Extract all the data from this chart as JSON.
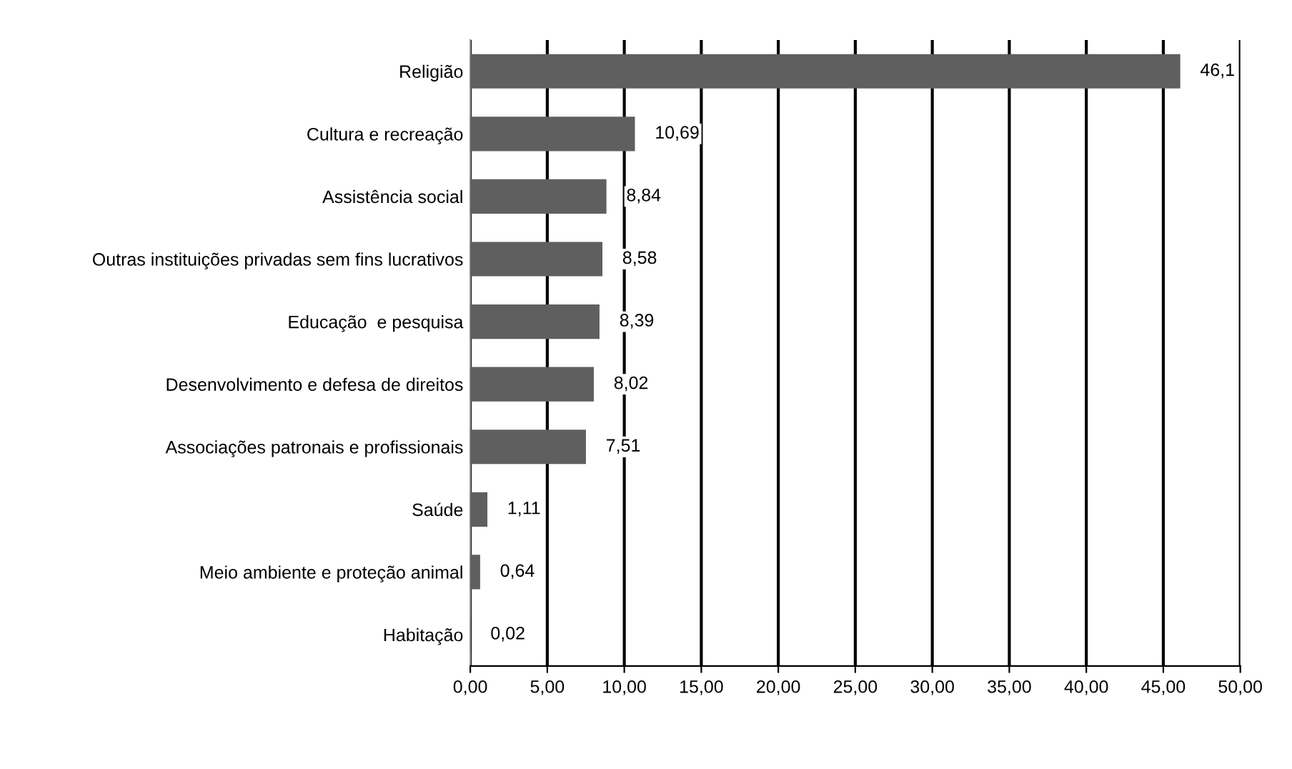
{
  "chart_data": {
    "type": "bar",
    "orientation": "horizontal",
    "categories": [
      "Religião",
      "Cultura e recreação",
      "Assistência social",
      "Outras instituições privadas sem fins lucrativos",
      "Educação  e pesquisa",
      "Desenvolvimento e defesa de direitos",
      "Associações patronais e profissionais",
      "Saúde",
      "Meio ambiente e proteção animal",
      "Habitação"
    ],
    "values": [
      46.1,
      10.69,
      8.84,
      8.58,
      8.39,
      8.02,
      7.51,
      1.11,
      0.64,
      0.02
    ],
    "value_labels": [
      "46,1",
      "10,69",
      "8,84",
      "8,58",
      "8,39",
      "8,02",
      "7,51",
      "1,11",
      "0,64",
      "0,02"
    ],
    "color": "#5f5f5f",
    "xlim": [
      0,
      50
    ],
    "xticks": [
      {
        "value": 0,
        "label": "0,00"
      },
      {
        "value": 5,
        "label": "5,00"
      },
      {
        "value": 10,
        "label": "10,00"
      },
      {
        "value": 15,
        "label": "15,00"
      },
      {
        "value": 20,
        "label": "20,00"
      },
      {
        "value": 25,
        "label": "25,00"
      },
      {
        "value": 30,
        "label": "30,00"
      },
      {
        "value": 35,
        "label": "35,00"
      },
      {
        "value": 40,
        "label": "40,00"
      },
      {
        "value": 45,
        "label": "45,00"
      },
      {
        "value": 50,
        "label": "50,00"
      }
    ],
    "grid": "x"
  }
}
